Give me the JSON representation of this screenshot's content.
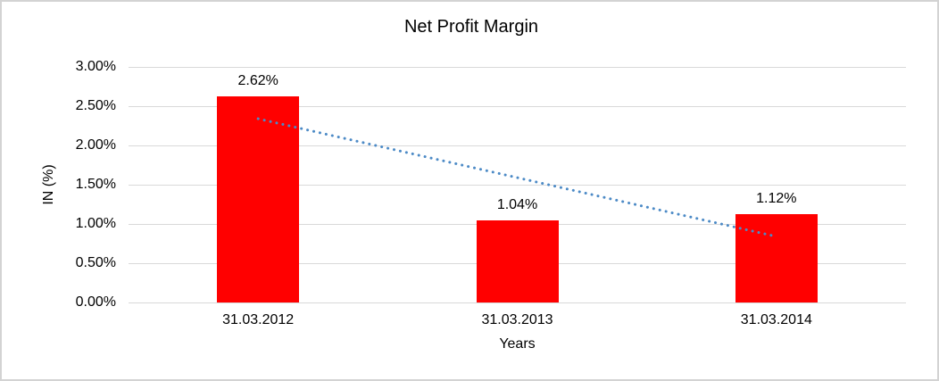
{
  "window": {
    "background_color": "#ffffff",
    "border_color": "#d3d3d3"
  },
  "chart_data": {
    "type": "bar",
    "title": "Net Profit Margin",
    "xlabel": "Years",
    "ylabel": "IN (%)",
    "categories": [
      "31.03.2012",
      "31.03.2013",
      "31.03.2014"
    ],
    "values": [
      2.62,
      1.04,
      1.12
    ],
    "data_labels": [
      "2.62%",
      "1.04%",
      "1.12%"
    ],
    "y_ticks": [
      "3.00%",
      "2.50%",
      "2.00%",
      "1.50%",
      "1.00%",
      "0.50%",
      "0.00%"
    ],
    "ylim": [
      0,
      3
    ],
    "grid": true,
    "legend_position": "none",
    "bar_color": "#ff0000",
    "gridline_color": "#d9d9d9",
    "trendline": {
      "type": "linear",
      "style": "dotted",
      "color": "#4c8ac6",
      "start_value": 2.34,
      "end_value": 0.84
    }
  }
}
